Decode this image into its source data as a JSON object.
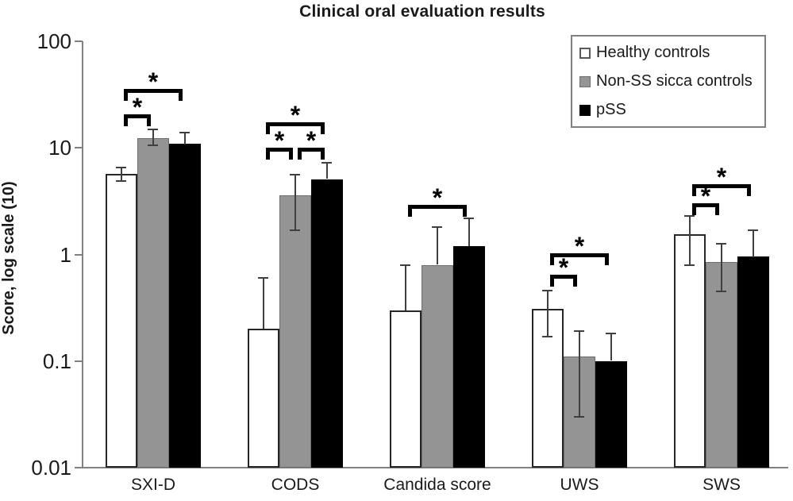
{
  "chart_data": {
    "type": "bar",
    "title": "Clinical oral evaluation results",
    "ylabel": "Score, log scale (10)",
    "xlabel": "",
    "y_scale": "log10",
    "ylim": [
      0.01,
      100
    ],
    "y_tick_values": [
      100,
      10,
      1,
      0.1,
      0.01
    ],
    "y_tick_labels": [
      "100",
      "10",
      "1",
      "0.1",
      "0.01"
    ],
    "grid": false,
    "categories": [
      "SXI-D",
      "CODS",
      "Candida score",
      "UWS",
      "SWS"
    ],
    "series": [
      {
        "name": "Healthy controls",
        "fill": "#ffffff",
        "border": "#262626",
        "values": [
          5.7,
          0.2,
          0.3,
          0.31,
          1.55
        ],
        "err_hi": [
          6.5,
          0.6,
          0.8,
          0.46,
          2.3
        ],
        "err_lo": [
          4.9,
          null,
          null,
          0.17,
          0.8
        ]
      },
      {
        "name": "Non-SS sicca controls",
        "fill": "#949494",
        "border": "#6e6e6e",
        "values": [
          12.4,
          3.6,
          0.8,
          0.11,
          0.85
        ],
        "err_hi": [
          14.8,
          5.6,
          1.8,
          0.19,
          1.25
        ],
        "err_lo": [
          10.6,
          1.7,
          null,
          0.03,
          0.45
        ]
      },
      {
        "name": "pSS",
        "fill": "#000000",
        "border": "#000000",
        "values": [
          10.9,
          5.1,
          1.2,
          0.1,
          0.95
        ],
        "err_hi": [
          14.0,
          7.2,
          2.2,
          0.18,
          1.7
        ],
        "err_lo": [
          null,
          null,
          null,
          null,
          null
        ]
      }
    ],
    "significance_brackets": [
      {
        "category": "SXI-D",
        "group": 0,
        "from": 0,
        "to": 1,
        "y": 20.5,
        "label": "*"
      },
      {
        "category": "SXI-D",
        "group": 0,
        "from": 0,
        "to": 2,
        "y": 35.5,
        "label": "*"
      },
      {
        "category": "CODS",
        "group": 1,
        "from": 0,
        "to": 1,
        "y": 10,
        "label": "*"
      },
      {
        "category": "CODS",
        "group": 1,
        "from": 1,
        "to": 2,
        "y": 10,
        "label": "*"
      },
      {
        "category": "CODS",
        "group": 1,
        "from": 0,
        "to": 2,
        "y": 17.5,
        "label": "*"
      },
      {
        "category": "Candida score",
        "group": 2,
        "from": 0,
        "to": 2,
        "y": 2.9,
        "label": "*"
      },
      {
        "category": "UWS",
        "group": 3,
        "from": 0,
        "to": 1,
        "y": 0.65,
        "label": "*"
      },
      {
        "category": "UWS",
        "group": 3,
        "from": 0,
        "to": 2,
        "y": 1.02,
        "label": "*"
      },
      {
        "category": "SWS",
        "group": 4,
        "from": 0,
        "to": 1,
        "y": 3.0,
        "label": "*"
      },
      {
        "category": "SWS",
        "group": 4,
        "from": 0,
        "to": 2,
        "y": 4.55,
        "label": "*"
      }
    ],
    "legend": {
      "position": "top-right",
      "items": [
        "Healthy controls",
        "Non-SS sicca controls",
        "pSS"
      ]
    }
  },
  "colors": {
    "background": "#ffffff",
    "axis": "#808080",
    "error_bar": "#3f3f3f",
    "bracket": "#000000",
    "text": "#1a1a1a",
    "legend_border": "#7f7f7f"
  }
}
